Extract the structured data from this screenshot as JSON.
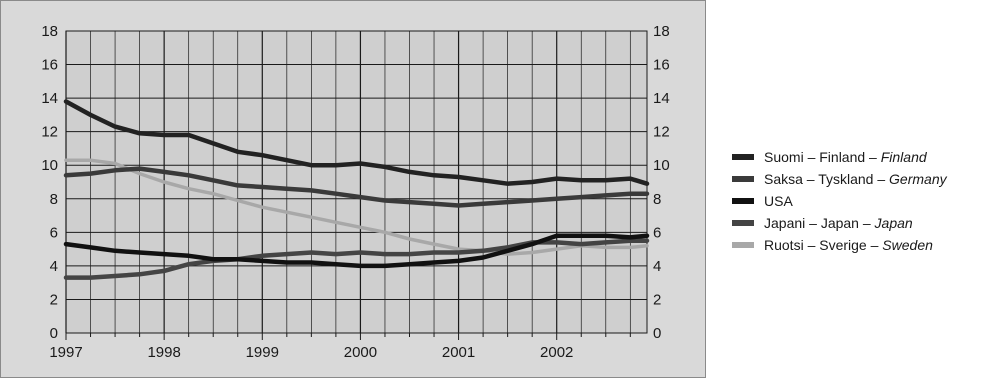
{
  "chart_data": {
    "type": "line",
    "title": "",
    "xlabel": "",
    "ylabel": "",
    "x_ticks": [
      "1997",
      "1998",
      "1999",
      "2000",
      "2001",
      "2002"
    ],
    "y_ticks": [
      "0",
      "2",
      "4",
      "6",
      "8",
      "10",
      "12",
      "14",
      "16",
      "18"
    ],
    "xlim": [
      1997.0,
      2002.92
    ],
    "ylim": [
      0,
      18
    ],
    "grid": true,
    "legend_position": "right",
    "series": [
      {
        "name": "Suomi – Finland – ",
        "name_italic": "Finland",
        "color": "#222222",
        "x": [
          1997.0,
          1997.25,
          1997.5,
          1997.75,
          1998.0,
          1998.25,
          1998.5,
          1998.75,
          1999.0,
          1999.25,
          1999.5,
          1999.75,
          2000.0,
          2000.25,
          2000.5,
          2000.75,
          2001.0,
          2001.25,
          2001.5,
          2001.75,
          2002.0,
          2002.25,
          2002.5,
          2002.75,
          2002.92
        ],
        "y": [
          13.8,
          13.0,
          12.3,
          11.9,
          11.8,
          11.8,
          11.3,
          10.8,
          10.6,
          10.3,
          10.0,
          10.0,
          10.1,
          9.9,
          9.6,
          9.4,
          9.3,
          9.1,
          8.9,
          9.0,
          9.2,
          9.1,
          9.1,
          9.2,
          8.9
        ]
      },
      {
        "name": "Saksa – Tyskland – ",
        "name_italic": "Germany",
        "color": "#3a3a3a",
        "x": [
          1997.0,
          1997.25,
          1997.5,
          1997.75,
          1998.0,
          1998.25,
          1998.5,
          1998.75,
          1999.0,
          1999.25,
          1999.5,
          1999.75,
          2000.0,
          2000.25,
          2000.5,
          2000.75,
          2001.0,
          2001.25,
          2001.5,
          2001.75,
          2002.0,
          2002.25,
          2002.5,
          2002.75,
          2002.92
        ],
        "y": [
          9.4,
          9.5,
          9.7,
          9.8,
          9.6,
          9.4,
          9.1,
          8.8,
          8.7,
          8.6,
          8.5,
          8.3,
          8.1,
          7.9,
          7.8,
          7.7,
          7.6,
          7.7,
          7.8,
          7.9,
          8.0,
          8.1,
          8.2,
          8.3,
          8.3
        ]
      },
      {
        "name": "USA",
        "name_italic": "",
        "color": "#111111",
        "x": [
          1997.0,
          1997.25,
          1997.5,
          1997.75,
          1998.0,
          1998.25,
          1998.5,
          1998.75,
          1999.0,
          1999.25,
          1999.5,
          1999.75,
          2000.0,
          2000.25,
          2000.5,
          2000.75,
          2001.0,
          2001.25,
          2001.5,
          2001.75,
          2002.0,
          2002.25,
          2002.5,
          2002.75,
          2002.92
        ],
        "y": [
          5.3,
          5.1,
          4.9,
          4.8,
          4.7,
          4.6,
          4.4,
          4.4,
          4.3,
          4.2,
          4.2,
          4.1,
          4.0,
          4.0,
          4.1,
          4.2,
          4.3,
          4.5,
          4.9,
          5.3,
          5.8,
          5.8,
          5.8,
          5.7,
          5.8
        ]
      },
      {
        "name": "Japani – Japan – ",
        "name_italic": "Japan",
        "color": "#444444",
        "x": [
          1997.0,
          1997.25,
          1997.5,
          1997.75,
          1998.0,
          1998.25,
          1998.5,
          1998.75,
          1999.0,
          1999.25,
          1999.5,
          1999.75,
          2000.0,
          2000.25,
          2000.5,
          2000.75,
          2001.0,
          2001.25,
          2001.5,
          2001.75,
          2002.0,
          2002.25,
          2002.5,
          2002.75,
          2002.92
        ],
        "y": [
          3.3,
          3.3,
          3.4,
          3.5,
          3.7,
          4.1,
          4.3,
          4.4,
          4.6,
          4.7,
          4.8,
          4.7,
          4.8,
          4.7,
          4.7,
          4.8,
          4.8,
          4.9,
          5.1,
          5.4,
          5.4,
          5.3,
          5.4,
          5.5,
          5.5
        ]
      },
      {
        "name": "Ruotsi – Sverige – ",
        "name_italic": "Sweden",
        "color": "#a8a8a8",
        "x": [
          1997.0,
          1997.25,
          1997.5,
          1997.75,
          1998.0,
          1998.25,
          1998.5,
          1998.75,
          1999.0,
          1999.25,
          1999.5,
          1999.75,
          2000.0,
          2000.25,
          2000.5,
          2000.75,
          2001.0,
          2001.25,
          2001.5,
          2001.75,
          2002.0,
          2002.25,
          2002.5,
          2002.75,
          2002.92
        ],
        "y": [
          10.3,
          10.3,
          10.1,
          9.5,
          9.0,
          8.6,
          8.3,
          7.9,
          7.5,
          7.2,
          6.9,
          6.6,
          6.3,
          6.0,
          5.6,
          5.3,
          5.0,
          4.9,
          4.7,
          4.8,
          5.0,
          5.2,
          5.1,
          5.1,
          5.2
        ]
      }
    ]
  }
}
